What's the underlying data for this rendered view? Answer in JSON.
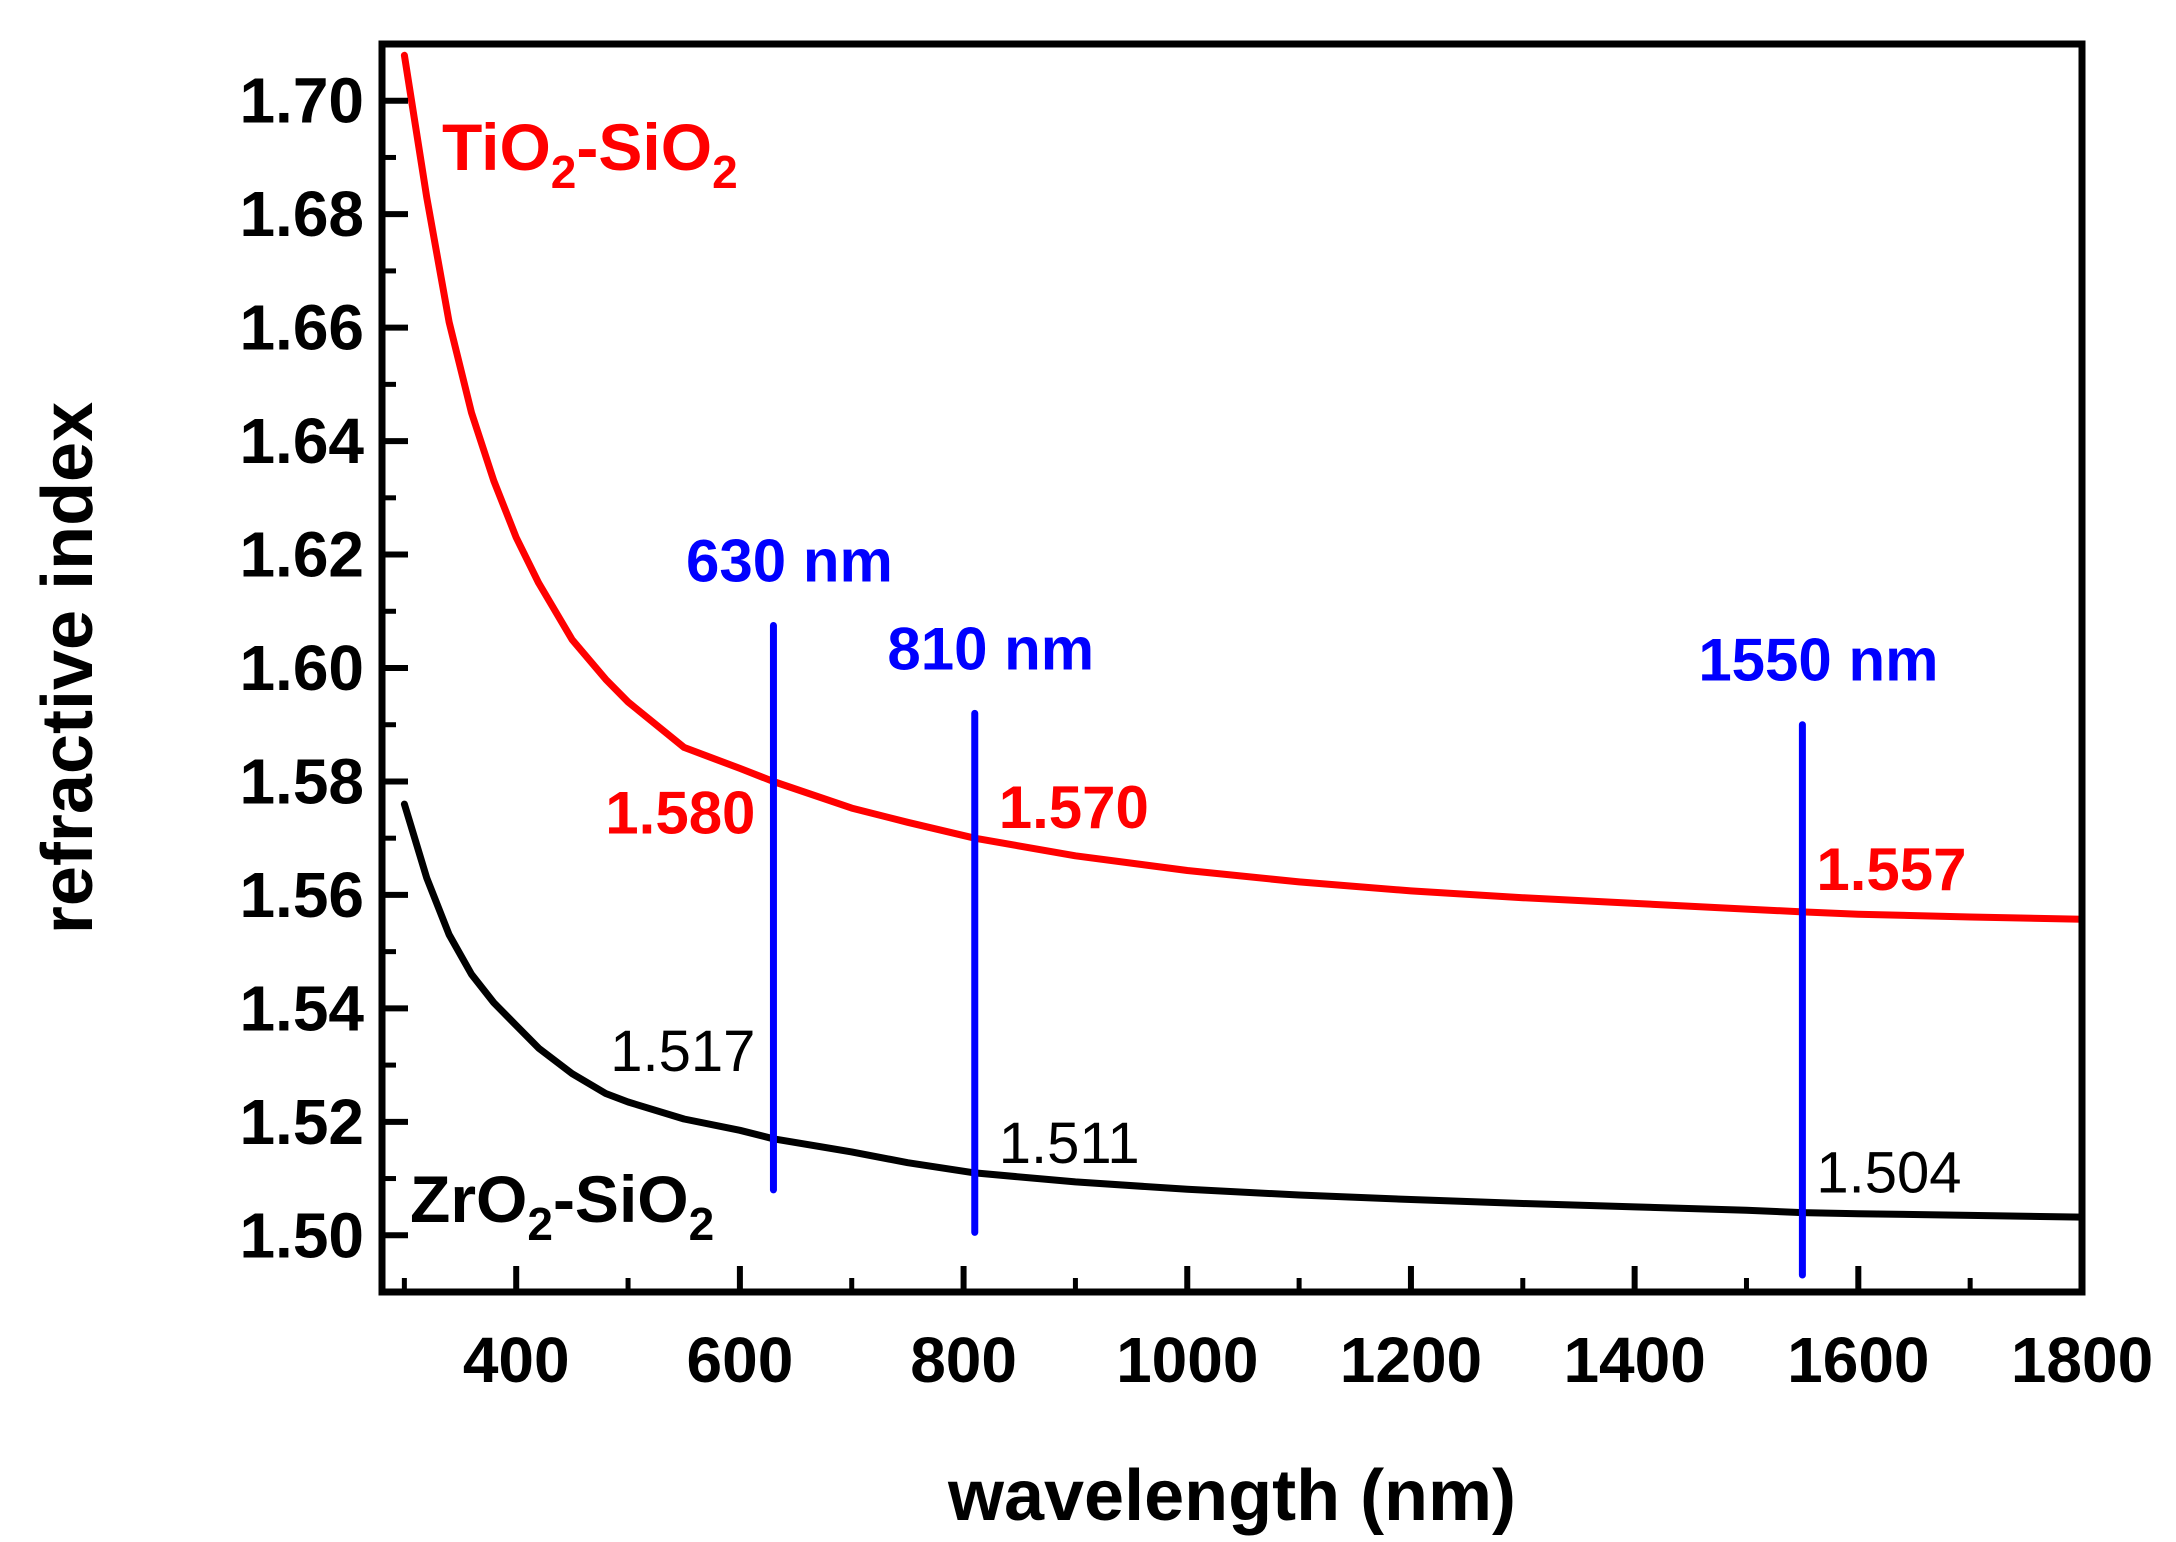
{
  "chart_data": {
    "type": "line",
    "title": "",
    "xlabel": "wavelength (nm)",
    "ylabel": "refractive index",
    "xlim": [
      280,
      1800
    ],
    "ylim": [
      1.49,
      1.71
    ],
    "xticks": [
      400,
      600,
      800,
      1000,
      1200,
      1400,
      1600,
      1800
    ],
    "xtick_labels": [
      "400",
      "600",
      "800",
      "1000",
      "1200",
      "1400",
      "1600",
      "1800"
    ],
    "yticks": [
      1.5,
      1.52,
      1.54,
      1.56,
      1.58,
      1.6,
      1.62,
      1.64,
      1.66,
      1.68,
      1.7
    ],
    "ytick_labels": [
      "1.50",
      "1.52",
      "1.54",
      "1.56",
      "1.58",
      "1.60",
      "1.62",
      "1.64",
      "1.66",
      "1.68",
      "1.70"
    ],
    "grid": false,
    "series": [
      {
        "name": "TiO2-SiO2",
        "label_main": "TiO",
        "label_sub1": "2",
        "label_mid": "-SiO",
        "label_sub2": "2",
        "color": "#ff0000",
        "x": [
          300,
          320,
          340,
          360,
          380,
          400,
          420,
          450,
          480,
          500,
          550,
          600,
          630,
          700,
          750,
          810,
          900,
          1000,
          1100,
          1200,
          1300,
          1400,
          1500,
          1550,
          1600,
          1700,
          1800
        ],
        "y": [
          1.708,
          1.683,
          1.661,
          1.645,
          1.633,
          1.623,
          1.615,
          1.605,
          1.598,
          1.594,
          1.586,
          1.5823,
          1.58,
          1.5753,
          1.5728,
          1.57,
          1.5669,
          1.5643,
          1.5623,
          1.5607,
          1.5595,
          1.5585,
          1.5575,
          1.557,
          1.5566,
          1.5561,
          1.5557
        ]
      },
      {
        "name": "ZrO2-SiO2",
        "label_main": "ZrO",
        "label_sub1": "2",
        "label_mid": "-SiO",
        "label_sub2": "2",
        "color": "#000000",
        "x": [
          300,
          320,
          340,
          360,
          380,
          400,
          420,
          450,
          480,
          500,
          550,
          600,
          630,
          700,
          750,
          810,
          900,
          1000,
          1100,
          1200,
          1300,
          1400,
          1500,
          1550,
          1600,
          1700,
          1800
        ],
        "y": [
          1.576,
          1.563,
          1.553,
          1.546,
          1.541,
          1.537,
          1.533,
          1.5285,
          1.525,
          1.5235,
          1.5205,
          1.5185,
          1.517,
          1.5147,
          1.5128,
          1.511,
          1.5094,
          1.5081,
          1.5071,
          1.5063,
          1.5056,
          1.505,
          1.5044,
          1.504,
          1.5038,
          1.5035,
          1.5032
        ]
      }
    ],
    "markers": [
      {
        "x": 630,
        "label": "630 nm",
        "y_from": 1.508,
        "y_to": 1.6075,
        "color": "#0000ff"
      },
      {
        "x": 810,
        "label": "810 nm",
        "y_from": 1.5005,
        "y_to": 1.592,
        "color": "#0000ff"
      },
      {
        "x": 1550,
        "label": "1550 nm",
        "y_from": 1.493,
        "y_to": 1.59,
        "color": "#0000ff"
      }
    ],
    "annotations": [
      {
        "text": "1.580",
        "series": "TiO2-SiO2",
        "x": 630,
        "y": 1.58
      },
      {
        "text": "1.570",
        "series": "TiO2-SiO2",
        "x": 810,
        "y": 1.57
      },
      {
        "text": "1.557",
        "series": "TiO2-SiO2",
        "x": 1550,
        "y": 1.557
      },
      {
        "text": "1.517",
        "series": "ZrO2-SiO2",
        "x": 630,
        "y": 1.517
      },
      {
        "text": "1.511",
        "series": "ZrO2-SiO2",
        "x": 810,
        "y": 1.511
      },
      {
        "text": "1.504",
        "series": "ZrO2-SiO2",
        "x": 1550,
        "y": 1.504
      }
    ]
  }
}
